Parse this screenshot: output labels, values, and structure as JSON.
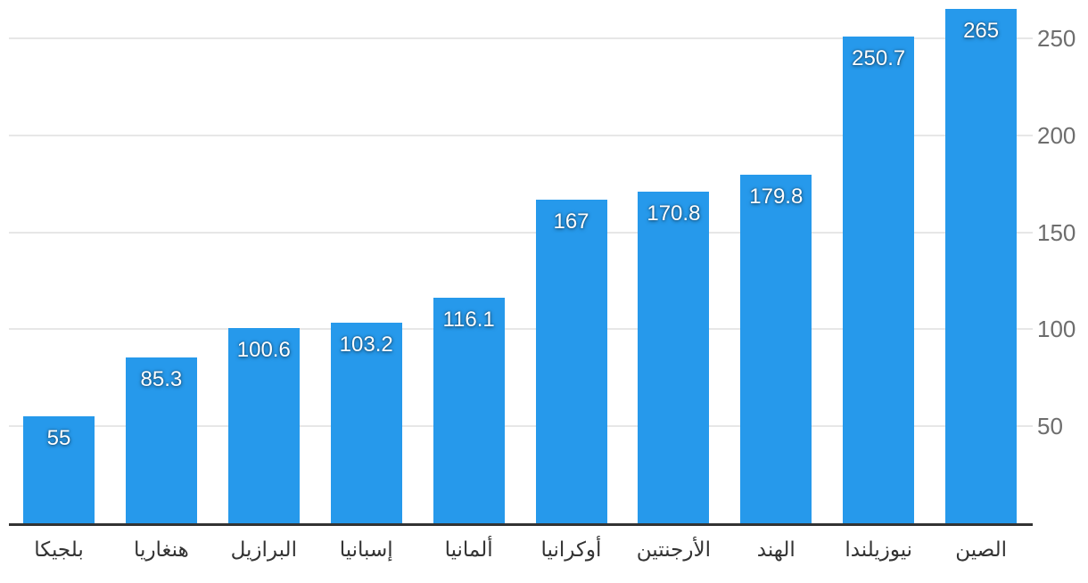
{
  "chart_data": {
    "type": "bar",
    "title": "",
    "xlabel": "",
    "ylabel": "",
    "categories": [
      "بلجيكا",
      "هنغاريا",
      "البرازيل",
      "إسبانيا",
      "ألمانيا",
      "أوكرانيا",
      "الأرجنتين",
      "الهند",
      "نيوزيلندا",
      "الصين"
    ],
    "values": [
      55,
      85.3,
      100.6,
      103.2,
      116.1,
      167,
      170.8,
      179.8,
      250.7,
      265
    ],
    "value_labels": [
      "55",
      "85.3",
      "100.6",
      "103.2",
      "116.1",
      "167",
      "170.8",
      "179.8",
      "250.7",
      "265"
    ],
    "ytick_labels": [
      "50",
      "100",
      "150",
      "200",
      "250"
    ],
    "yticks": [
      50,
      100,
      150,
      200,
      250
    ],
    "ylim": [
      0,
      270
    ],
    "grid": true,
    "legend": "none",
    "yaxis_side": "right",
    "colors": {
      "bar": "#2699eb",
      "gridline": "#e7e7e7",
      "baseline": "#333333",
      "ytick_text": "#6d6d6d",
      "category_text": "#333333",
      "value_text": "#ffffff",
      "background": "#ffffff"
    }
  }
}
